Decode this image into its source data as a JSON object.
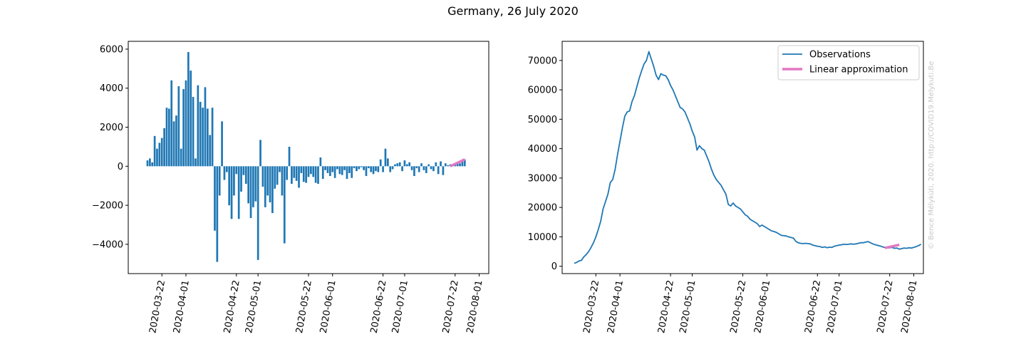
{
  "title": "Germany, 26 July 2020",
  "watermark": "© Bence Mélykúti, 2020. http://COVID19.Melykuti.Be",
  "colors": {
    "bars": "#1f77b4",
    "observations": "#1f77b4",
    "linear": "#e377c2"
  },
  "chart_data": [
    {
      "type": "bar",
      "xlim": [
        "2020-03-08",
        "2020-08-05"
      ],
      "ylim": [
        -5500,
        6400
      ],
      "yticks": [
        -4000,
        -2000,
        0,
        2000,
        4000,
        6000
      ],
      "ytick_labels": [
        "−4000",
        "−2000",
        "0",
        "2000",
        "4000",
        "6000"
      ],
      "xticks": [
        "2020-03-22",
        "2020-04-01",
        "2020-04-22",
        "2020-05-01",
        "2020-05-22",
        "2020-06-01",
        "2020-06-22",
        "2020-07-01",
        "2020-07-22",
        "2020-08-01"
      ],
      "start_date": "2020-03-16",
      "values": [
        300,
        400,
        200,
        1550,
        900,
        1200,
        1450,
        1950,
        3000,
        2950,
        4400,
        2300,
        2600,
        4100,
        900,
        3950,
        4400,
        5850,
        4900,
        3550,
        400,
        4150,
        3300,
        3000,
        4050,
        2950,
        1600,
        3000,
        -3300,
        -4900,
        -1500,
        2300,
        -700,
        -300,
        -2000,
        -2700,
        -1500,
        -400,
        -2700,
        -1300,
        -450,
        -900,
        -1900,
        -2650,
        -2100,
        -1800,
        -4800,
        1350,
        -1050,
        -2100,
        -1500,
        -1850,
        -2400,
        -1150,
        -950,
        -300,
        -1500,
        -3950,
        -700,
        1000,
        -900,
        -600,
        -750,
        -1100,
        -350,
        -800,
        -850,
        -550,
        -400,
        -550,
        -850,
        -900,
        450,
        -650,
        -200,
        -350,
        -500,
        -300,
        -600,
        -150,
        -400,
        -450,
        -200,
        -650,
        -350,
        -600,
        -100,
        -250,
        -150,
        -50,
        -200,
        -500,
        -100,
        -300,
        -400,
        -250,
        -300,
        350,
        -300,
        900,
        400,
        -300,
        -150,
        100,
        150,
        200,
        -250,
        300,
        100,
        200,
        -200,
        -500,
        -100,
        -300,
        150,
        -200,
        -350,
        100,
        -150,
        -250,
        200,
        -400,
        250,
        -450,
        150,
        50,
        100,
        50,
        100,
        200,
        150,
        250,
        350
      ],
      "linear_approximation": {
        "x": [
          "2020-07-20",
          "2020-07-26"
        ],
        "y": [
          0,
          350
        ]
      }
    },
    {
      "type": "line",
      "xlim": [
        "2020-03-08",
        "2020-08-05"
      ],
      "ylim": [
        -2500,
        76500
      ],
      "yticks": [
        0,
        10000,
        20000,
        30000,
        40000,
        50000,
        60000,
        70000
      ],
      "ytick_labels": [
        "0",
        "10000",
        "20000",
        "30000",
        "40000",
        "50000",
        "60000",
        "70000"
      ],
      "xticks": [
        "2020-03-22",
        "2020-04-01",
        "2020-04-22",
        "2020-05-01",
        "2020-05-22",
        "2020-06-01",
        "2020-06-22",
        "2020-07-01",
        "2020-07-22",
        "2020-08-01"
      ],
      "legend": {
        "position": "upper right",
        "entries": [
          "Observations",
          "Linear approximation"
        ]
      },
      "series": [
        {
          "name": "Observations",
          "start_date": "2020-03-13",
          "values": [
            1000,
            1300,
            1800,
            2000,
            3200,
            4000,
            5000,
            6400,
            8000,
            10000,
            12500,
            15300,
            19500,
            22000,
            24500,
            28500,
            29500,
            33000,
            38000,
            42500,
            47000,
            51000,
            52500,
            52800,
            56000,
            58000,
            61000,
            64000,
            66500,
            68800,
            70000,
            73000,
            70500,
            68000,
            65000,
            63500,
            65500,
            65000,
            64800,
            63500,
            61500,
            60000,
            58000,
            56000,
            54000,
            53500,
            52500,
            50500,
            48500,
            46000,
            44000,
            39500,
            41000,
            40000,
            39500,
            37500,
            35500,
            33000,
            31000,
            29500,
            28500,
            27500,
            26000,
            24500,
            21000,
            20500,
            21500,
            20500,
            20000,
            19500,
            18500,
            17500,
            17000,
            16000,
            15500,
            15000,
            14500,
            13500,
            14000,
            13500,
            13000,
            12500,
            12000,
            11800,
            11500,
            11000,
            10500,
            10400,
            10300,
            10000,
            9800,
            9600,
            8500,
            8000,
            7800,
            7700,
            7800,
            7700,
            7600,
            7200,
            7000,
            6800,
            6700,
            6400,
            6600,
            6300,
            6500,
            6400,
            6800,
            7000,
            7200,
            7300,
            7500,
            7400,
            7500,
            7600,
            7500,
            7600,
            7800,
            8000,
            8000,
            8200,
            8400,
            8000,
            7600,
            7300,
            7100,
            6900,
            6600,
            6400,
            6200,
            6300,
            6400,
            6100,
            6200,
            5800,
            6000,
            6200,
            6100,
            6300,
            6200,
            6400,
            6700,
            7000,
            7500
          ]
        },
        {
          "name": "Linear approximation",
          "x": [
            "2020-07-20",
            "2020-07-26"
          ],
          "y": [
            6200,
            7300
          ]
        }
      ]
    }
  ]
}
